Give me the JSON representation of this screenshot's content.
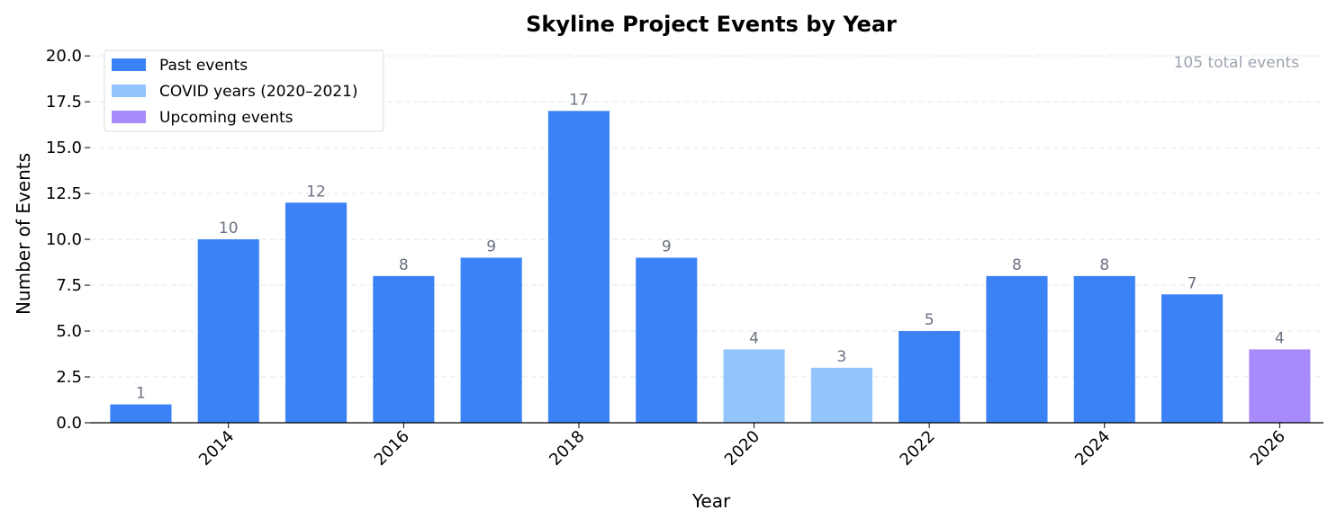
{
  "chart_data": {
    "type": "bar",
    "title": "Skyline Project Events by Year",
    "xlabel": "Year",
    "ylabel": "Number of Events",
    "x": [
      2013,
      2014,
      2015,
      2016,
      2017,
      2018,
      2019,
      2020,
      2021,
      2022,
      2023,
      2024,
      2025,
      2026
    ],
    "values": [
      1,
      10,
      12,
      8,
      9,
      17,
      9,
      4,
      3,
      5,
      8,
      8,
      7,
      4
    ],
    "categories_by_bar": [
      "past",
      "past",
      "past",
      "past",
      "past",
      "past",
      "past",
      "covid",
      "covid",
      "past",
      "past",
      "past",
      "past",
      "upcoming"
    ],
    "xticks": [
      2014,
      2016,
      2018,
      2020,
      2022,
      2024,
      2026
    ],
    "yticks": [
      "0.0",
      "2.5",
      "5.0",
      "7.5",
      "10.0",
      "12.5",
      "15.0",
      "17.5",
      "20.0"
    ],
    "ylim": [
      0,
      20.4
    ],
    "xlim": [
      2012.42,
      2026.5
    ],
    "grid": "y dashed",
    "legend_position": "top-left",
    "legend": [
      {
        "key": "past",
        "label": "Past events",
        "color": "#3b82f6"
      },
      {
        "key": "covid",
        "label": "COVID years (2020–2021)",
        "color": "#93c5fd"
      },
      {
        "key": "upcoming",
        "label": "Upcoming events",
        "color": "#a78bfa"
      }
    ],
    "annotation": "105 total events",
    "colors": {
      "label": "#6b7280",
      "annotation": "#9ca3af",
      "grid": "#e5e7eb"
    }
  }
}
